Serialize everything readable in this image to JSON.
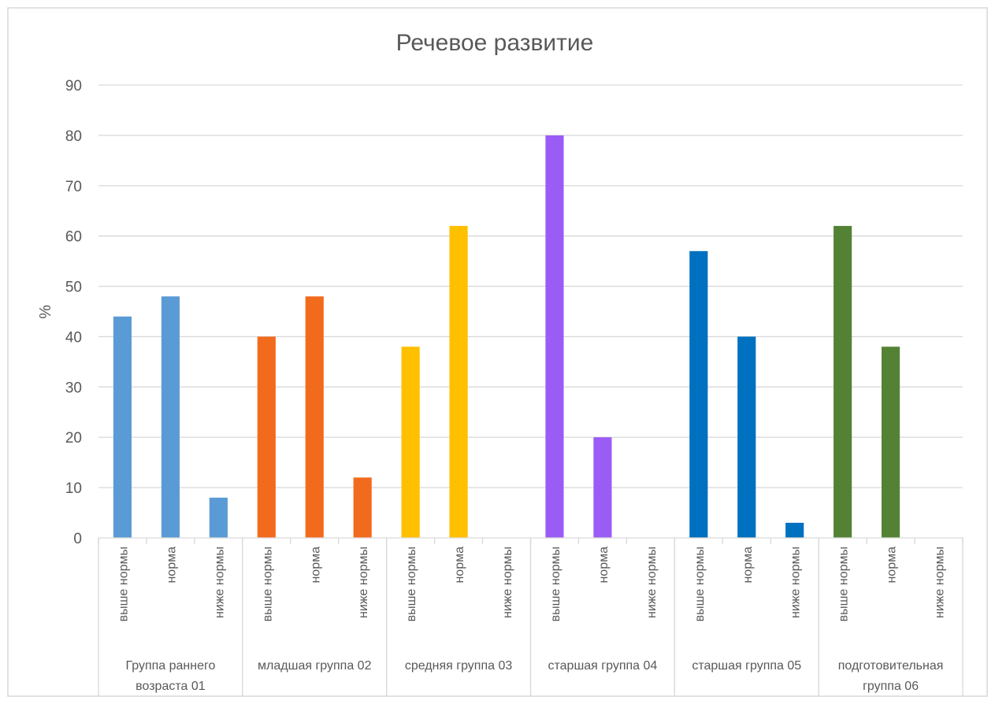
{
  "chart_data": {
    "type": "bar",
    "title": "Речевое развитие",
    "xlabel": "",
    "ylabel": "%",
    "ylim": [
      0,
      90
    ],
    "yticks": [
      0,
      10,
      20,
      30,
      40,
      50,
      60,
      70,
      80,
      90
    ],
    "grid": true,
    "legend": "none",
    "groups": [
      {
        "label_lines": [
          "Группа раннего",
          "возраста 01"
        ],
        "color": "#5B9BD5",
        "categories": [
          "выше нормы",
          "норма",
          "ниже нормы"
        ],
        "values": [
          44,
          48,
          8
        ]
      },
      {
        "label_lines": [
          "младшая группа 02"
        ],
        "color": "#F26B1D",
        "categories": [
          "выше нормы",
          "норма",
          "ниже нормы"
        ],
        "values": [
          40,
          48,
          12
        ]
      },
      {
        "label_lines": [
          "средняя группа 03"
        ],
        "color": "#FFC000",
        "categories": [
          "выше нормы",
          "норма",
          "ниже нормы"
        ],
        "values": [
          38,
          62,
          0
        ]
      },
      {
        "label_lines": [
          "старшая группа 04"
        ],
        "color": "#9B5CF6",
        "categories": [
          "выше нормы",
          "норма",
          "ниже нормы"
        ],
        "values": [
          80,
          20,
          0
        ]
      },
      {
        "label_lines": [
          "старшая группа 05"
        ],
        "color": "#0070C0",
        "categories": [
          "выше нормы",
          "норма",
          "ниже нормы"
        ],
        "values": [
          57,
          40,
          3
        ]
      },
      {
        "label_lines": [
          "подготовительная",
          "группа 06"
        ],
        "color": "#548235",
        "categories": [
          "выше нормы",
          "норма",
          "ниже нормы"
        ],
        "values": [
          62,
          38,
          0
        ]
      }
    ]
  }
}
